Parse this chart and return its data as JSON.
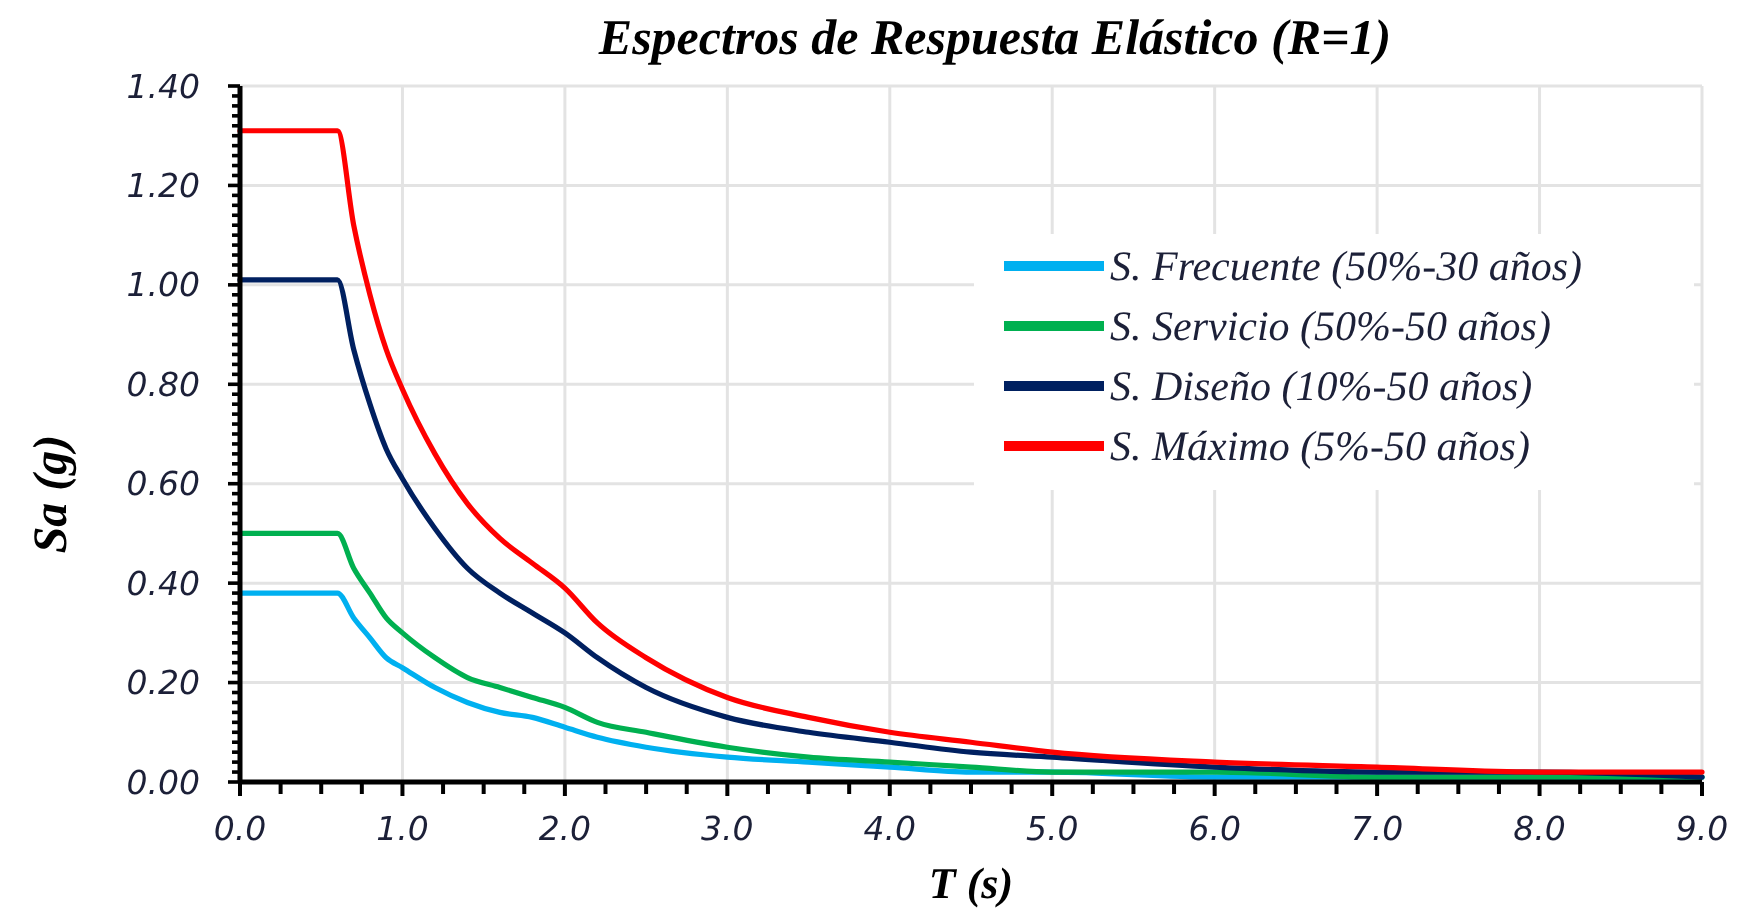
{
  "chart_data": {
    "type": "line",
    "title": "Espectros de Respuesta Elástico (R=1)",
    "xlabel": "T (s)",
    "ylabel": "Sa (g)",
    "x": [
      0,
      0.6,
      0.7,
      0.8,
      0.9,
      1.0,
      1.2,
      1.4,
      1.6,
      1.8,
      2.0,
      2.2,
      2.5,
      3.0,
      3.5,
      4.0,
      4.5,
      5.0,
      6.0,
      7.0,
      8.0,
      9.0
    ],
    "series": [
      {
        "name": "S. Frecuente (50%-30 años)",
        "color": "#00b0f0",
        "values": [
          0.38,
          0.38,
          0.33,
          0.29,
          0.25,
          0.23,
          0.19,
          0.16,
          0.14,
          0.13,
          0.11,
          0.09,
          0.07,
          0.05,
          0.04,
          0.03,
          0.02,
          0.02,
          0.01,
          0.01,
          0.01,
          0.01
        ]
      },
      {
        "name": "S. Servicio (50%-50 años)",
        "color": "#00b050",
        "values": [
          0.5,
          0.5,
          0.43,
          0.38,
          0.33,
          0.3,
          0.25,
          0.21,
          0.19,
          0.17,
          0.15,
          0.12,
          0.1,
          0.07,
          0.05,
          0.04,
          0.03,
          0.02,
          0.02,
          0.01,
          0.01,
          0.01
        ]
      },
      {
        "name": "S. Diseño (10%-50 años)",
        "color": "#002060",
        "values": [
          1.01,
          1.01,
          0.87,
          0.76,
          0.67,
          0.61,
          0.51,
          0.43,
          0.38,
          0.34,
          0.3,
          0.25,
          0.19,
          0.13,
          0.1,
          0.08,
          0.06,
          0.05,
          0.03,
          0.02,
          0.02,
          0.01
        ]
      },
      {
        "name": "S. Máximo (5%-50 años)",
        "color": "#ff0000",
        "values": [
          1.31,
          1.31,
          1.12,
          0.98,
          0.87,
          0.79,
          0.66,
          0.56,
          0.49,
          0.44,
          0.39,
          0.32,
          0.25,
          0.17,
          0.13,
          0.1,
          0.08,
          0.06,
          0.04,
          0.03,
          0.02,
          0.02
        ]
      }
    ],
    "xlim": [
      0,
      9
    ],
    "ylim": [
      0,
      1.4
    ],
    "xticks": [
      {
        "value": 0,
        "label": "0.0"
      },
      {
        "value": 0.25,
        "label": null
      },
      {
        "value": 0.5,
        "label": null
      },
      {
        "value": 0.75,
        "label": null
      },
      {
        "value": 1,
        "label": "1.0"
      },
      {
        "value": 1.25,
        "label": null
      },
      {
        "value": 1.5,
        "label": null
      },
      {
        "value": 1.75,
        "label": null
      },
      {
        "value": 2,
        "label": "2.0"
      },
      {
        "value": 2.25,
        "label": null
      },
      {
        "value": 2.5,
        "label": null
      },
      {
        "value": 2.75,
        "label": null
      },
      {
        "value": 3,
        "label": "3.0"
      },
      {
        "value": 3.25,
        "label": null
      },
      {
        "value": 3.5,
        "label": null
      },
      {
        "value": 3.75,
        "label": null
      },
      {
        "value": 4,
        "label": "4.0"
      },
      {
        "value": 4.25,
        "label": null
      },
      {
        "value": 4.5,
        "label": null
      },
      {
        "value": 4.75,
        "label": null
      },
      {
        "value": 5,
        "label": "5.0"
      },
      {
        "value": 5.25,
        "label": null
      },
      {
        "value": 5.5,
        "label": null
      },
      {
        "value": 5.75,
        "label": null
      },
      {
        "value": 6,
        "label": "6.0"
      },
      {
        "value": 6.25,
        "label": null
      },
      {
        "value": 6.5,
        "label": null
      },
      {
        "value": 6.75,
        "label": null
      },
      {
        "value": 7,
        "label": "7.0"
      },
      {
        "value": 7.25,
        "label": null
      },
      {
        "value": 7.5,
        "label": null
      },
      {
        "value": 7.75,
        "label": null
      },
      {
        "value": 8,
        "label": "8.0"
      },
      {
        "value": 8.25,
        "label": null
      },
      {
        "value": 8.5,
        "label": null
      },
      {
        "value": 8.75,
        "label": null
      },
      {
        "value": 9,
        "label": "9.0"
      }
    ],
    "yticks": [
      {
        "value": 0,
        "label": "0.00"
      },
      {
        "value": 0.02,
        "label": null
      },
      {
        "value": 0.04,
        "label": null
      },
      {
        "value": 0.06,
        "label": null
      },
      {
        "value": 0.08,
        "label": null
      },
      {
        "value": 0.1,
        "label": null
      },
      {
        "value": 0.12,
        "label": null
      },
      {
        "value": 0.14,
        "label": null
      },
      {
        "value": 0.16,
        "label": null
      },
      {
        "value": 0.18,
        "label": null
      },
      {
        "value": 0.2,
        "label": "0.20"
      },
      {
        "value": 0.22,
        "label": null
      },
      {
        "value": 0.24,
        "label": null
      },
      {
        "value": 0.26,
        "label": null
      },
      {
        "value": 0.28,
        "label": null
      },
      {
        "value": 0.3,
        "label": null
      },
      {
        "value": 0.32,
        "label": null
      },
      {
        "value": 0.34,
        "label": null
      },
      {
        "value": 0.36,
        "label": null
      },
      {
        "value": 0.38,
        "label": null
      },
      {
        "value": 0.4,
        "label": "0.40"
      },
      {
        "value": 0.42,
        "label": null
      },
      {
        "value": 0.44,
        "label": null
      },
      {
        "value": 0.46,
        "label": null
      },
      {
        "value": 0.48,
        "label": null
      },
      {
        "value": 0.5,
        "label": null
      },
      {
        "value": 0.52,
        "label": null
      },
      {
        "value": 0.54,
        "label": null
      },
      {
        "value": 0.56,
        "label": null
      },
      {
        "value": 0.58,
        "label": null
      },
      {
        "value": 0.6,
        "label": "0.60"
      },
      {
        "value": 0.62,
        "label": null
      },
      {
        "value": 0.64,
        "label": null
      },
      {
        "value": 0.66,
        "label": null
      },
      {
        "value": 0.68,
        "label": null
      },
      {
        "value": 0.7,
        "label": null
      },
      {
        "value": 0.72,
        "label": null
      },
      {
        "value": 0.74,
        "label": null
      },
      {
        "value": 0.76,
        "label": null
      },
      {
        "value": 0.78,
        "label": null
      },
      {
        "value": 0.8,
        "label": "0.80"
      },
      {
        "value": 0.82,
        "label": null
      },
      {
        "value": 0.84,
        "label": null
      },
      {
        "value": 0.86,
        "label": null
      },
      {
        "value": 0.88,
        "label": null
      },
      {
        "value": 0.9,
        "label": null
      },
      {
        "value": 0.92,
        "label": null
      },
      {
        "value": 0.94,
        "label": null
      },
      {
        "value": 0.96,
        "label": null
      },
      {
        "value": 0.98,
        "label": null
      },
      {
        "value": 1.0,
        "label": "1.00"
      },
      {
        "value": 1.02,
        "label": null
      },
      {
        "value": 1.04,
        "label": null
      },
      {
        "value": 1.06,
        "label": null
      },
      {
        "value": 1.08,
        "label": null
      },
      {
        "value": 1.1,
        "label": null
      },
      {
        "value": 1.12,
        "label": null
      },
      {
        "value": 1.14,
        "label": null
      },
      {
        "value": 1.16,
        "label": null
      },
      {
        "value": 1.18,
        "label": null
      },
      {
        "value": 1.2,
        "label": "1.20"
      },
      {
        "value": 1.22,
        "label": null
      },
      {
        "value": 1.24,
        "label": null
      },
      {
        "value": 1.26,
        "label": null
      },
      {
        "value": 1.28,
        "label": null
      },
      {
        "value": 1.3,
        "label": null
      },
      {
        "value": 1.32,
        "label": null
      },
      {
        "value": 1.34,
        "label": null
      },
      {
        "value": 1.36,
        "label": null
      },
      {
        "value": 1.38,
        "label": null
      },
      {
        "value": 1.4,
        "label": "1.40"
      }
    ],
    "grid": true,
    "legend": "top right"
  }
}
